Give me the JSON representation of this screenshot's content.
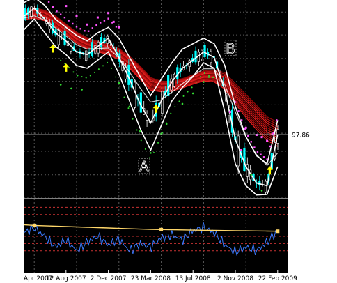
{
  "chart_data": [
    {
      "type": "line",
      "panel": "price",
      "title": "",
      "ylim": [
        86.38,
        122.5
      ],
      "y_ticks": [
        "120.30",
        "116.10",
        "111.80",
        "107.60",
        "103.30",
        "98.10",
        "94.80",
        "90.50",
        "86.38"
      ],
      "current_price_label": "97.86",
      "current_price": 97.86,
      "annotations": [
        {
          "text": "A",
          "x": "23 Mar 2008",
          "y": 91.6
        },
        {
          "text": "B",
          "x": "13 Jul 2008",
          "y": 113.2
        }
      ],
      "x": [
        0,
        4,
        8,
        12,
        16,
        20,
        24,
        28,
        32,
        36,
        40,
        44,
        48,
        52,
        56,
        60,
        64,
        68,
        72,
        76,
        80,
        84,
        88,
        92,
        96
      ],
      "series": [
        {
          "values": [
            119.5,
            121.0,
            119.0,
            116.5,
            115.0,
            113.0,
            112.5,
            114.0,
            115.5,
            112.0,
            108.0,
            103.5,
            100.0,
            104.0,
            107.5,
            110.0,
            111.5,
            113.0,
            112.0,
            106.0,
            97.0,
            92.0,
            89.0,
            88.5,
            97.9
          ]
        },
        {
          "values": [
            122.0,
            123.0,
            121.5,
            119.0,
            117.5,
            116.0,
            115.0,
            116.5,
            117.5,
            115.5,
            112.0,
            108.5,
            105.0,
            108.0,
            111.0,
            113.5,
            114.5,
            115.5,
            114.5,
            110.5,
            103.0,
            97.5,
            94.0,
            92.5,
            100.5
          ]
        },
        {
          "values": [
            117.0,
            119.0,
            116.5,
            114.0,
            112.5,
            110.5,
            110.0,
            111.5,
            113.0,
            109.0,
            104.0,
            99.0,
            95.0,
            99.5,
            104.0,
            106.5,
            108.5,
            111.0,
            110.0,
            102.0,
            92.5,
            88.5,
            86.8,
            86.9,
            92.0
          ]
        },
        {
          "values": [
            120.0,
            120.5,
            120.0,
            119.0,
            117.5,
            116.0,
            115.0,
            114.3,
            113.8,
            113.0,
            111.6,
            109.8,
            107.7,
            107.0,
            107.0,
            107.5,
            108.2,
            108.9,
            109.0,
            108.3,
            106.1,
            103.9,
            101.7,
            99.4,
            98.2
          ]
        },
        {
          "values": [
            119.5,
            119.8,
            119.3,
            118.2,
            116.8,
            115.2,
            114.2,
            113.6,
            113.1,
            112.2,
            110.6,
            108.6,
            106.6,
            106.3,
            106.4,
            107.0,
            107.7,
            108.3,
            108.2,
            107.1,
            104.6,
            102.3,
            100.3,
            98.5,
            97.6
          ]
        },
        {
          "values": [
            119.2,
            119.6,
            118.8,
            117.4,
            115.9,
            114.3,
            113.5,
            113.6,
            113.7,
            111.9,
            109.3,
            106.4,
            103.8,
            104.2,
            105.6,
            107.2,
            108.6,
            109.9,
            109.9,
            107.0,
            102.0,
            97.4,
            94.2,
            92.2,
            94.5
          ]
        }
      ],
      "stops": [
        {
          "x": 8,
          "y": 125.2
        },
        {
          "x": 12,
          "y": 123.3
        },
        {
          "x": 16,
          "y": 121.4
        },
        {
          "x": 20,
          "y": 119.6
        },
        {
          "x": 24,
          "y": 118.0
        },
        {
          "x": 28,
          "y": 119.3
        },
        {
          "x": 32,
          "y": 120.1
        },
        {
          "x": 34,
          "y": 118.5
        },
        {
          "x": 36,
          "y": 117.5
        },
        {
          "x": 84,
          "y": 99.1
        },
        {
          "x": 88,
          "y": 97.8
        },
        {
          "x": 90,
          "y": 97.4
        },
        {
          "x": 92,
          "y": 96.7
        },
        {
          "x": 94,
          "y": 97.9
        },
        {
          "x": 14,
          "y": 107.0
        },
        {
          "x": 18,
          "y": 106.3
        },
        {
          "x": 22,
          "y": 106.1
        },
        {
          "x": 36,
          "y": 107.3
        },
        {
          "x": 40,
          "y": 103.0
        },
        {
          "x": 44,
          "y": 98.5
        },
        {
          "x": 48,
          "y": 94.5
        },
        {
          "x": 52,
          "y": 98.0
        },
        {
          "x": 54,
          "y": 99.8
        },
        {
          "x": 60,
          "y": 103.5
        },
        {
          "x": 64,
          "y": 105.4
        },
        {
          "x": 68,
          "y": 107.5
        },
        {
          "x": 70,
          "y": 108.4
        },
        {
          "x": 78,
          "y": 102.0
        },
        {
          "x": 82,
          "y": 95.0
        },
        {
          "x": 86,
          "y": 90.5
        },
        {
          "x": 90,
          "y": 87.6
        }
      ],
      "buy_arrows": [
        {
          "x": 11,
          "y": 113.5
        },
        {
          "x": 16,
          "y": 110.0
        },
        {
          "x": 50,
          "y": 102.5
        },
        {
          "x": 93,
          "y": 91.2
        }
      ]
    },
    {
      "type": "line",
      "panel": "oscillator",
      "ylim": [
        0,
        100
      ],
      "y_ticks": [
        100,
        90,
        80,
        65,
        50,
        40,
        30,
        0
      ],
      "reference_levels": [
        90,
        80,
        50,
        40,
        30
      ],
      "x": [
        0,
        4,
        8,
        12,
        16,
        20,
        24,
        28,
        32,
        36,
        40,
        44,
        48,
        52,
        56,
        60,
        64,
        68,
        72,
        76,
        80,
        84,
        88,
        92,
        96
      ],
      "series": [
        {
          "values": [
            55,
            62,
            50,
            35,
            45,
            30,
            42,
            50,
            38,
            46,
            30,
            40,
            35,
            48,
            52,
            45,
            58,
            62,
            55,
            38,
            28,
            35,
            30,
            42,
            58
          ]
        },
        {
          "values": [
            66,
            65,
            64.5,
            64,
            63.5,
            63,
            62.5,
            62,
            61.5,
            61,
            60.5,
            60,
            59.6,
            59.3,
            59,
            58.8,
            58.6,
            58.4,
            58.2,
            58,
            57.8,
            57.6,
            57.4,
            57.2,
            57
          ]
        }
      ],
      "markers": [
        {
          "x": 4,
          "y": 65
        },
        {
          "x": 52,
          "y": 59.3
        },
        {
          "x": 96,
          "y": 57
        }
      ]
    }
  ],
  "x_axis": {
    "tick_labels": [
      "Apr 2007",
      "12 Aug 2007",
      "2 Dec 2007",
      "23 Mar 2008",
      "13 Jul 2008",
      "2 Nov 2008",
      "22 Feb 2009"
    ],
    "tick_x": [
      0,
      16,
      32,
      48,
      64,
      80,
      96
    ]
  },
  "colors": {
    "background": "#000000",
    "grid": "#5a5a5a",
    "axis_text": "#ffffff",
    "envelope": "#ffffff",
    "ribbon": [
      "#ff2222",
      "#e01818",
      "#c01010",
      "#a00808"
    ],
    "candle_down": "#00ffff",
    "stop_high": "#ff55ff",
    "stop_low": "#33dd33",
    "arrow": "#ffff00",
    "osc_line": "#3a7bff",
    "osc_signal": "#ffd76a",
    "osc_levels": "#c83232"
  }
}
